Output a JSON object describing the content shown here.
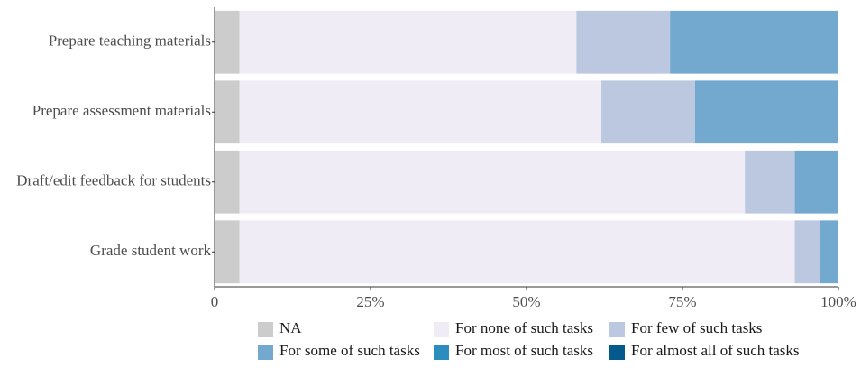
{
  "chart_data": {
    "type": "bar",
    "orientation": "horizontal",
    "stacked": true,
    "categories": [
      "Prepare teaching materials",
      "Prepare assessment materials",
      "Draft/edit feedback for students",
      "Grade student work"
    ],
    "series": [
      {
        "name": "NA",
        "color": "#cccccc",
        "values": [
          4,
          4,
          4,
          4
        ]
      },
      {
        "name": "For none of such tasks",
        "color": "#f0ecf5",
        "values": [
          54,
          58,
          81,
          89
        ]
      },
      {
        "name": "For few of such tasks",
        "color": "#bcc8e0",
        "values": [
          15,
          15,
          8,
          4
        ]
      },
      {
        "name": "For some of such tasks",
        "color": "#74a9cf",
        "values": [
          27,
          23,
          7,
          3
        ]
      },
      {
        "name": "For most of such tasks",
        "color": "#2b8cbe",
        "values": [
          0,
          0,
          0,
          0
        ]
      },
      {
        "name": "For almost all of such tasks",
        "color": "#045a8d",
        "values": [
          0,
          0,
          0,
          0
        ]
      }
    ],
    "xlim": [
      0,
      100
    ],
    "x_ticks": [
      {
        "value": 0,
        "label": "0"
      },
      {
        "value": 25,
        "label": "25%"
      },
      {
        "value": 50,
        "label": "50%"
      },
      {
        "value": 75,
        "label": "75%"
      },
      {
        "value": 100,
        "label": "100%"
      }
    ],
    "title": "",
    "xlabel": "",
    "ylabel": "",
    "grid": false,
    "legend_position": "bottom"
  }
}
